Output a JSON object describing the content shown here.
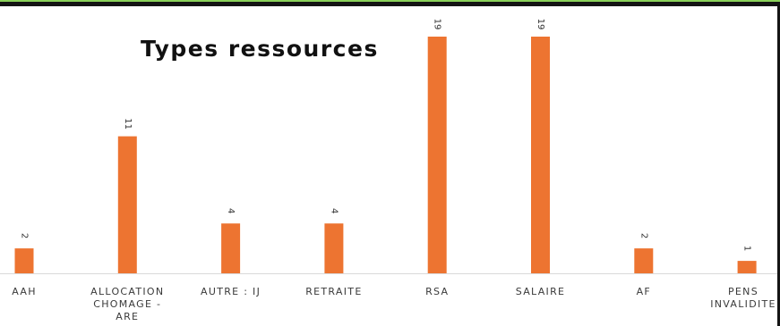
{
  "chart_data": {
    "type": "bar",
    "title": "Types ressources",
    "xlabel": "",
    "ylabel": "",
    "categories": [
      [
        "AAH"
      ],
      [
        "ALLOCATION",
        "CHOMAGE -",
        "ARE"
      ],
      [
        "AUTRE : IJ"
      ],
      [
        "RETRAITE"
      ],
      [
        "RSA"
      ],
      [
        "SALAIRE"
      ],
      [
        "AF"
      ],
      [
        "PENS",
        "INVALIDITE"
      ]
    ],
    "values": [
      2,
      11,
      4,
      4,
      19,
      19,
      2,
      1
    ],
    "ylim": [
      0,
      19
    ],
    "grid": false,
    "legend": "none",
    "data_labels": true,
    "colors": {
      "bar": "#ed7431",
      "axis": "#d9d9d9",
      "frame": "#141414",
      "frame_accent": "#8ad15a"
    }
  }
}
